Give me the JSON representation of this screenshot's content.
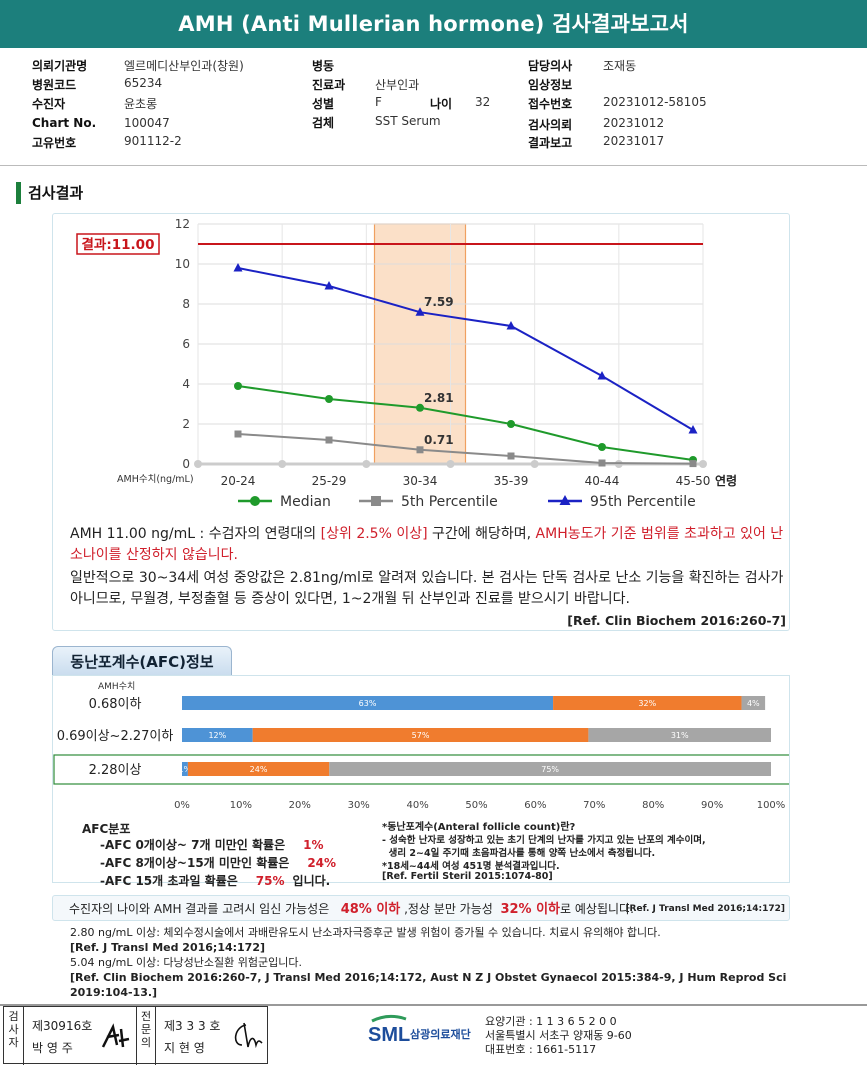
{
  "report_title": "AMH (Anti Mullerian hormone) 검사결과보고서",
  "info": {
    "col1": [
      {
        "label": "의뢰기관명",
        "value": "엘르메디산부인과(창원)"
      },
      {
        "label": "병원코드",
        "value": "65234"
      },
      {
        "label": "수진자",
        "value": "윤초롱"
      },
      {
        "label": "Chart No.",
        "value": "100047"
      },
      {
        "label": "고유번호",
        "value": "901112-2"
      }
    ],
    "col2": [
      {
        "label": "병동",
        "value": ""
      },
      {
        "label": "진료과",
        "value": "산부인과"
      },
      {
        "label": "성별",
        "value": "F"
      },
      {
        "label": "검체",
        "value": "SST Serum"
      }
    ],
    "age_label": "나이",
    "age_value": "32",
    "col3": [
      {
        "label": "담당의사",
        "value": "조재동"
      },
      {
        "label": "임상정보",
        "value": ""
      },
      {
        "label": "접수번호",
        "value": "20231012-58105"
      },
      {
        "label": "검사의뢰",
        "value": "20231012"
      },
      {
        "label": "결과보고",
        "value": "20231017"
      }
    ]
  },
  "section_title": "검사결과",
  "chart_data": {
    "type": "line",
    "categories": [
      "20-24",
      "25-29",
      "30-34",
      "35-39",
      "40-44",
      "45-50"
    ],
    "x_axis_suffix": "연령",
    "y_axis_label": "AMH수치(ng/mL)",
    "ylim": [
      0,
      12
    ],
    "yticks": [
      0,
      2,
      4,
      6,
      8,
      10,
      12
    ],
    "highlight_category": "30-34",
    "result_value": 11.0,
    "result_label": "결과:11.00",
    "series": [
      {
        "name": "Median",
        "color": "#1f9a2b",
        "marker": "circle",
        "values": [
          3.9,
          3.25,
          2.81,
          2.0,
          0.85,
          0.2
        ]
      },
      {
        "name": "5th Percentile",
        "color": "#8a8a8a",
        "marker": "square",
        "values": [
          1.5,
          1.2,
          0.71,
          0.4,
          0.05,
          0.02
        ]
      },
      {
        "name": "95th Percentile",
        "color": "#1b22c4",
        "marker": "triangle",
        "values": [
          9.8,
          8.9,
          7.59,
          6.9,
          4.4,
          1.7
        ]
      }
    ],
    "data_labels": [
      {
        "series": 2,
        "index": 2,
        "text": "7.59"
      },
      {
        "series": 0,
        "index": 2,
        "text": "2.81"
      },
      {
        "series": 1,
        "index": 2,
        "text": "0.71"
      }
    ],
    "grid": true,
    "legend_position": "bottom"
  },
  "interpretation": {
    "p1_a": "AMH  11.00 ng/mL : 수검자의 연령대의 ",
    "p1_red1": "[상위 2.5% 이상]",
    "p1_b": " 구간에 해당하며, ",
    "p1_red2": "AMH농도가 기준 범위를 초과하고 있어 난소나이를 산정하지 않습니다.",
    "p2": "일반적으로 30~34세 여성 중앙값은 2.81ng/ml로 알려져 있습니다. 본 검사는 단독 검사로 난소 기능을 확진하는 검사가 아니므로, 무월경, 부정출혈 등 증상이 있다면, 1~2개월 뒤 산부인과 진료를 받으시기 바랍니다.",
    "ref": "[Ref. Clin Biochem 2016:260-7]"
  },
  "afc": {
    "tab_title": "동난포계수(AFC)정보",
    "amh_header": "AMH수치",
    "rows": [
      {
        "label": "0.68이하",
        "segments": [
          63,
          32,
          4
        ],
        "texts": [
          "63%",
          "32%",
          "4%"
        ]
      },
      {
        "label": "0.69이상~2.27이하",
        "segments": [
          12,
          57,
          31
        ],
        "texts": [
          "12%",
          "57%",
          "31%"
        ]
      },
      {
        "label": "2.28이상",
        "segments": [
          1,
          24,
          75
        ],
        "texts": [
          "1%",
          "24%",
          "75%"
        ],
        "highlight": true
      }
    ],
    "segment_colors": [
      "#4e93d6",
      "#f07c2e",
      "#a6a6a6"
    ],
    "x_ticks": [
      "0%",
      "10%",
      "20%",
      "30%",
      "40%",
      "50%",
      "60%",
      "70%",
      "80%",
      "90%",
      "100%"
    ],
    "dist_title": "AFC분포",
    "dist_lines": [
      {
        "a": "-AFC  0개이상~ 7개 미만인 확률은",
        "v": "1%",
        "b": ""
      },
      {
        "a": "-AFC  8개이상~15개 미만인 확률은",
        "v": "24%",
        "b": ""
      },
      {
        "a": "-AFC  15개 초과일 확률은",
        "v": "75%",
        "b": "입니다."
      }
    ],
    "note_title": "*동난포계수(Anteral follicle count)란?",
    "note_lines": [
      "- 성숙한 난자로 성장하고 있는 초기 단계의 난자를 가지고 있는 난포의 계수이며,",
      "  생리 2~4일 주기때 초음파검사를 통해 양쪽 난소에서 측정됩니다.",
      "*18세~44세 여성 451명 분석결과입니다.",
      "[Ref. Fertil Steril 2015:1074-80]"
    ]
  },
  "probability": {
    "a": "수진자의  나이와 AMH 결과를 고려시 임신 가능성은",
    "v1": "48% 이하",
    "b": ",정상 분만 가능성",
    "v2": "32% 이하",
    "c": "로 예상됩니다.",
    "ref": "[Ref. J Transl Med 2016;14:172]"
  },
  "notes": {
    "l1": "2.80  ng/mL  이상: 체외수정시술에서 과배란유도시 난소과자극증후군 발생 위험이 증가될 수 있습니다. 치료시 유의해야 합니다.",
    "l2": "[Ref. J Transl Med 2016;14:172]",
    "l3": "5.04  ng/mL  이상: 다낭성난소질환 위험군입니다.",
    "l4": "[Ref. Clin Biochem 2016:260-7, J Transl Med 2016;14:172, Aust N Z J Obstet Gynaecol 2015:384-9, J Hum Reprod Sci 2019:104-13.]"
  },
  "footer": {
    "inspector_vertical": "검사자",
    "inspector_no": "제30916호",
    "inspector_name": "박 영 주",
    "verifier_vertical": "전문의",
    "verifier_no": "제3 3 3 호",
    "verifier_name": "지 현 영",
    "logo_text": "SML",
    "org_name": "삼광의료재단",
    "code_line": "요양기관 : 1 1 3 6 5 2 0 0",
    "address": "서울특별시 서초구 양재동 9-60",
    "phone": "대표번호 : 1661-5117"
  }
}
